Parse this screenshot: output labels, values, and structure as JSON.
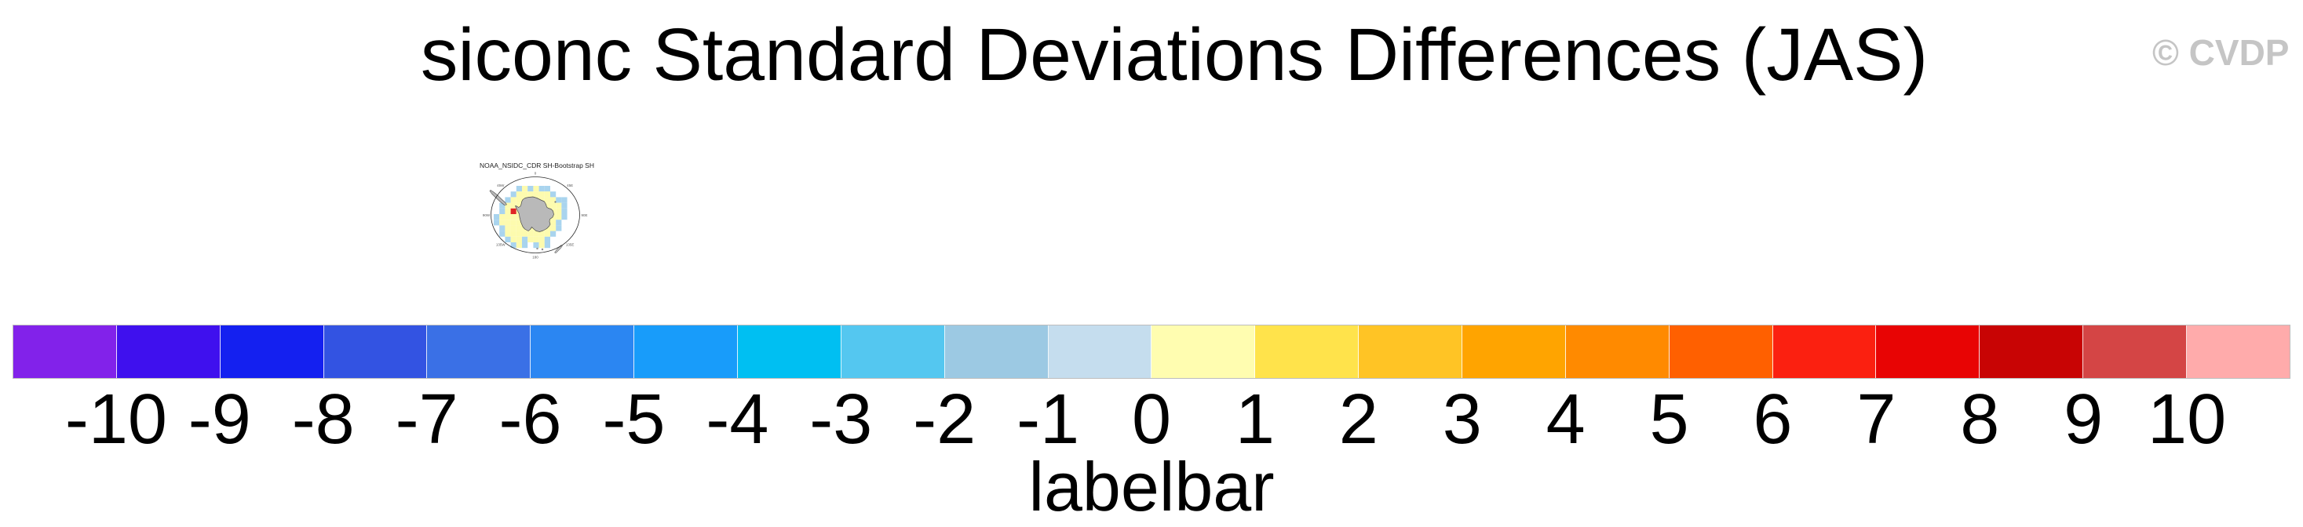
{
  "title": "siconc Standard Deviations Differences (JAS)",
  "watermark": "© CVDP",
  "mini_map": {
    "title": "NOAA_NSIDC_CDR SH-Bootstrap SH",
    "meridian_labels": [
      "0",
      "45E",
      "90E",
      "135E",
      "180",
      "135W",
      "90W",
      "45W"
    ],
    "cell_colors": {
      "Y": "#fdfbae",
      "b": "#a9d4ee",
      "r": "#e02525"
    },
    "land_color": "#b9b9b9",
    "outline_color": "#4a4a4a",
    "grid": [
      "....bYbYbb....",
      "...bYYYYYYb...",
      "..bYYYYYYYYbb.",
      ".bYYYYYYYYYYb.",
      ".bYrYYYYYYYYb.",
      "bYYYYYYYYYYYb.",
      "bYYYYYYYYYYb..",
      ".bYYYYYYYYYb..",
      ".bYYYYYYYYb...",
      "..bYYbYYYb....",
      "...bYb.bYb...."
    ]
  },
  "chart_data": {
    "type": "heatmap",
    "title": "siconc Standard Deviations Differences (JAS)",
    "variable": "siconc",
    "season": "JAS",
    "panels": [
      {
        "name": "NOAA_NSIDC_CDR SH-Bootstrap SH",
        "projection": "south polar stereographic",
        "content": "Antarctica landmass with surrounding ring of sea-ice std-dev difference cells, mostly pale yellow with scattered light blue cells and one red cell near the Antarctic Peninsula"
      }
    ],
    "labelbar": {
      "caption": "labelbar",
      "tick_labels": [
        "-10",
        "-9",
        "-8",
        "-7",
        "-6",
        "-5",
        "-4",
        "-3",
        "-2",
        "-1",
        "0",
        "1",
        "2",
        "3",
        "4",
        "5",
        "6",
        "7",
        "8",
        "9",
        "10"
      ],
      "colors": [
        "#8222ea",
        "#3f10ee",
        "#1420f0",
        "#3353e2",
        "#3a70e6",
        "#2b86f2",
        "#189cfa",
        "#00bff2",
        "#54c7f0",
        "#9cc9e3",
        "#c5ddee",
        "#fffdb0",
        "#ffe34b",
        "#ffc425",
        "#ffa400",
        "#ff8a00",
        "#ff6000",
        "#fb2010",
        "#e80404",
        "#c80404",
        "#d44545",
        "#ffabab"
      ],
      "value_range": [
        -10,
        10
      ],
      "n_boxes": 22,
      "legend_position": "bottom"
    }
  }
}
